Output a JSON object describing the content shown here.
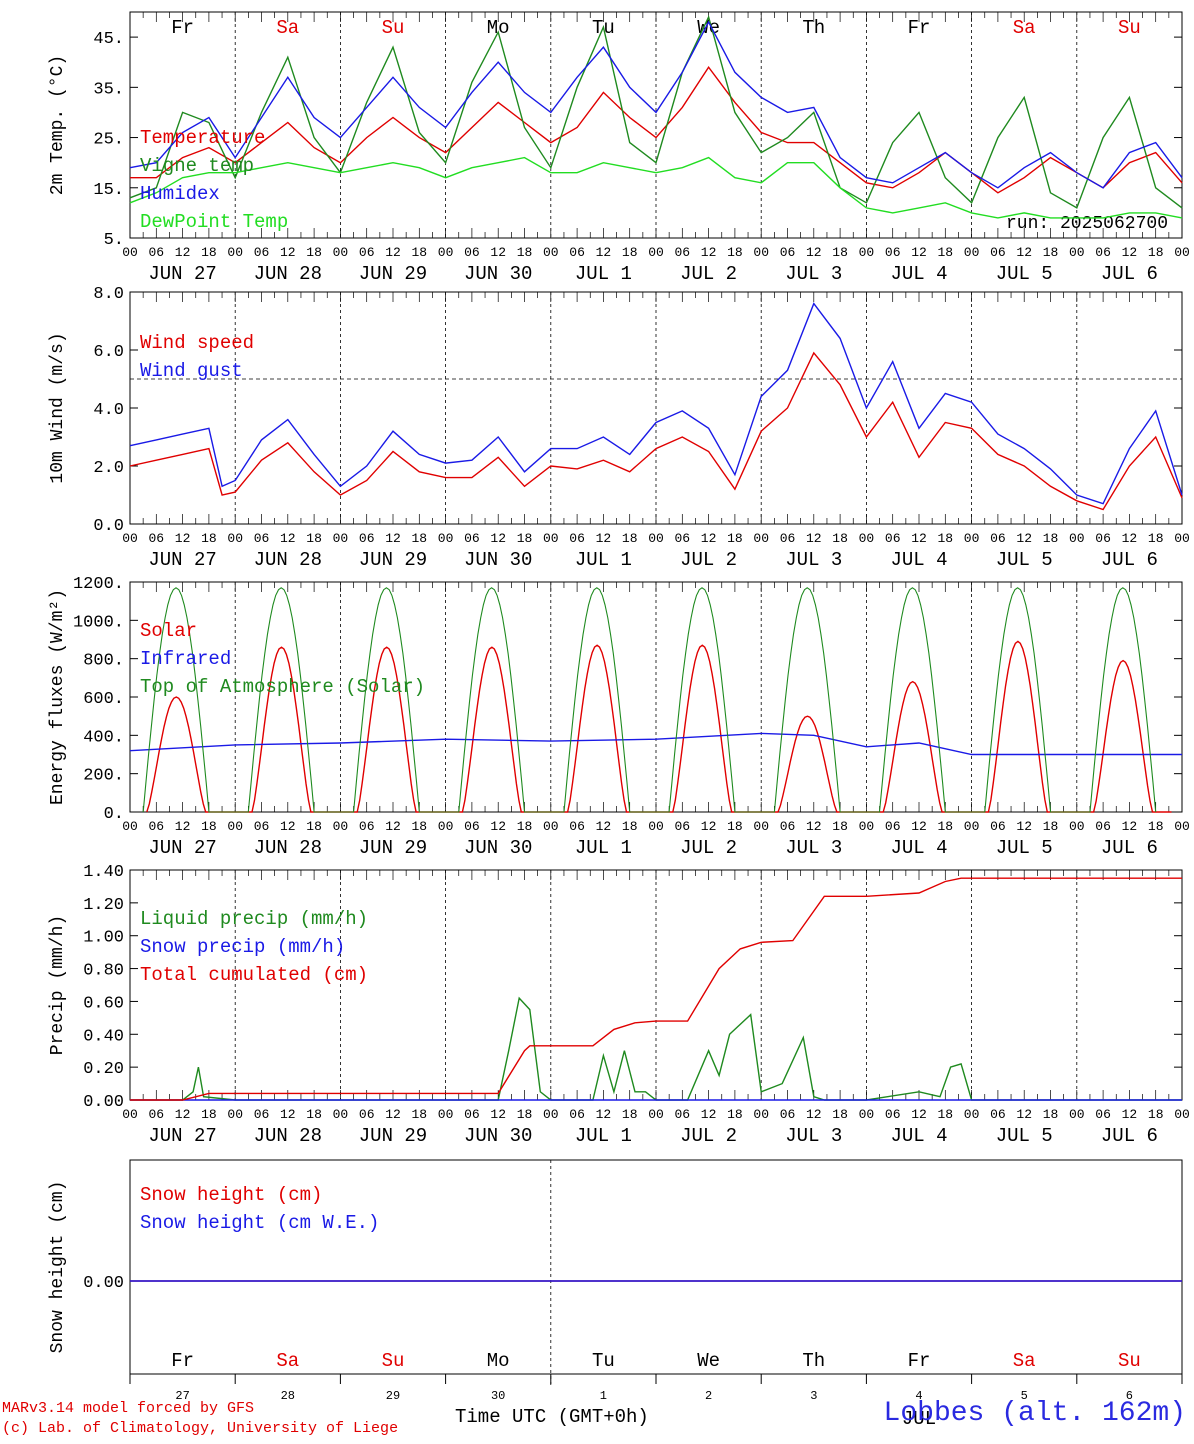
{
  "colors": {
    "red": "#e00000",
    "blue": "#1a1ae6",
    "green": "#1f8a1f",
    "lime": "#22dd22",
    "black": "#000000"
  },
  "run_label": "run: 2025062700",
  "hour_ticks": [
    "00",
    "06",
    "12",
    "18"
  ],
  "date_labels": [
    "JUN 27",
    "JUN 28",
    "JUN 29",
    "JUN 30",
    "JUL  1",
    "JUL  2",
    "JUL  3",
    "JUL  4",
    "JUL  5",
    "JUL  6"
  ],
  "day_names": [
    {
      "label": "Fr",
      "weekend": false
    },
    {
      "label": "Sa",
      "weekend": true
    },
    {
      "label": "Su",
      "weekend": true
    },
    {
      "label": "Mo",
      "weekend": false
    },
    {
      "label": "Tu",
      "weekend": false
    },
    {
      "label": "We",
      "weekend": false
    },
    {
      "label": "Th",
      "weekend": false
    },
    {
      "label": "Fr",
      "weekend": false
    },
    {
      "label": "Sa",
      "weekend": true
    },
    {
      "label": "Su",
      "weekend": true
    }
  ],
  "bottom_day_numbers": [
    "27",
    "28",
    "29",
    "30",
    "1",
    "2",
    "3",
    "4",
    "5",
    "6"
  ],
  "bottom_month": "JUL",
  "x_title": "Time UTC (GMT+0h)",
  "credit_lines": [
    "MARv3.14 model forced by GFS",
    "(c) Lab. of Climatology, University of Liege"
  ],
  "site_label": "Lobbes (alt. 162m)",
  "chart_data": [
    {
      "type": "line",
      "ylabel": "2m Temp. (°C)",
      "ylim": [
        5,
        50
      ],
      "yticks": [
        5,
        15,
        25,
        35,
        45
      ],
      "ytick_labels": [
        "5.",
        "15.",
        "25.",
        "35.",
        "45."
      ],
      "x_unit": "days from 2025-06-27 00 UTC",
      "series": [
        {
          "name": "Temperature",
          "color": "#e00000",
          "x": [
            0,
            0.25,
            0.5,
            0.75,
            1,
            1.25,
            1.5,
            1.75,
            2,
            2.25,
            2.5,
            2.75,
            3,
            3.25,
            3.5,
            3.75,
            4,
            4.25,
            4.5,
            4.75,
            5,
            5.25,
            5.5,
            5.75,
            6,
            6.25,
            6.5,
            6.75,
            7,
            7.25,
            7.5,
            7.75,
            8,
            8.25,
            8.5,
            8.75,
            9,
            9.25,
            9.5,
            9.75,
            10
          ],
          "y": [
            17,
            17,
            21,
            23,
            20,
            24,
            28,
            23,
            20,
            25,
            29,
            25,
            22,
            27,
            32,
            28,
            24,
            27,
            34,
            29,
            25,
            31,
            39,
            32,
            26,
            24,
            24,
            20,
            16,
            15,
            18,
            22,
            18,
            14,
            17,
            21,
            18,
            15,
            20,
            22,
            16
          ]
        },
        {
          "name": "Vigne temp",
          "color": "#1f8a1f",
          "x": [
            0,
            0.25,
            0.5,
            0.75,
            1,
            1.25,
            1.5,
            1.75,
            2,
            2.25,
            2.5,
            2.75,
            3,
            3.25,
            3.5,
            3.75,
            4,
            4.25,
            4.5,
            4.75,
            5,
            5.25,
            5.5,
            5.75,
            6,
            6.25,
            6.5,
            6.75,
            7,
            7.25,
            7.5,
            7.75,
            8,
            8.25,
            8.5,
            8.75,
            9,
            9.25,
            9.5,
            9.75,
            10
          ],
          "y": [
            13,
            15,
            30,
            28,
            17,
            30,
            41,
            25,
            18,
            32,
            43,
            26,
            20,
            36,
            46,
            27,
            19,
            35,
            47,
            24,
            20,
            38,
            49,
            30,
            22,
            25,
            30,
            15,
            12,
            24,
            30,
            17,
            12,
            25,
            33,
            14,
            11,
            25,
            33,
            15,
            11
          ]
        },
        {
          "name": "Humidex",
          "color": "#1a1ae6",
          "x": [
            0,
            0.25,
            0.5,
            0.75,
            1,
            1.25,
            1.5,
            1.75,
            2,
            2.25,
            2.5,
            2.75,
            3,
            3.25,
            3.5,
            3.75,
            4,
            4.25,
            4.5,
            4.75,
            5,
            5.25,
            5.5,
            5.75,
            6,
            6.25,
            6.5,
            6.75,
            7,
            7.25,
            7.5,
            7.75,
            8,
            8.25,
            8.5,
            8.75,
            9,
            9.25,
            9.5,
            9.75,
            10
          ],
          "y": [
            19,
            20,
            26,
            29,
            21,
            29,
            37,
            29,
            25,
            31,
            37,
            31,
            27,
            34,
            40,
            34,
            30,
            37,
            43,
            35,
            30,
            38,
            48,
            38,
            33,
            30,
            31,
            21,
            17,
            16,
            19,
            22,
            18,
            15,
            19,
            22,
            18,
            15,
            22,
            24,
            17
          ]
        },
        {
          "name": "DewPoint Temp",
          "color": "#22dd22",
          "x": [
            0,
            0.25,
            0.5,
            0.75,
            1,
            1.25,
            1.5,
            1.75,
            2,
            2.25,
            2.5,
            2.75,
            3,
            3.25,
            3.5,
            3.75,
            4,
            4.25,
            4.5,
            4.75,
            5,
            5.25,
            5.5,
            5.75,
            6,
            6.25,
            6.5,
            6.75,
            7,
            7.25,
            7.5,
            7.75,
            8,
            8.25,
            8.5,
            8.75,
            9,
            9.25,
            9.5,
            9.75,
            10
          ],
          "y": [
            12,
            14,
            17,
            18,
            18,
            19,
            20,
            19,
            18,
            19,
            20,
            19,
            17,
            19,
            20,
            21,
            18,
            18,
            20,
            19,
            18,
            19,
            21,
            17,
            16,
            20,
            20,
            15,
            11,
            10,
            11,
            12,
            10,
            9,
            10,
            9,
            9,
            9,
            10,
            10,
            9
          ]
        }
      ]
    },
    {
      "type": "line",
      "ylabel": "10m Wind (m/s)",
      "ylim": [
        0,
        8
      ],
      "yticks": [
        0,
        2,
        4,
        6,
        8
      ],
      "ytick_labels": [
        "0.0",
        "2.0",
        "4.0",
        "6.0",
        "8.0"
      ],
      "hline": 5,
      "series": [
        {
          "name": "Wind speed",
          "color": "#e00000",
          "x": [
            0,
            0.25,
            0.5,
            0.75,
            0.875,
            1,
            1.25,
            1.5,
            1.75,
            2,
            2.25,
            2.5,
            2.75,
            3,
            3.25,
            3.5,
            3.75,
            4,
            4.25,
            4.5,
            4.75,
            5,
            5.25,
            5.5,
            5.75,
            6,
            6.25,
            6.5,
            6.75,
            7,
            7.25,
            7.5,
            7.75,
            8,
            8.25,
            8.5,
            8.75,
            9,
            9.25,
            9.5,
            9.75,
            10
          ],
          "y": [
            2.0,
            2.2,
            2.4,
            2.6,
            1.0,
            1.1,
            2.2,
            2.8,
            1.8,
            1.0,
            1.5,
            2.5,
            1.8,
            1.6,
            1.6,
            2.3,
            1.3,
            2.0,
            1.9,
            2.2,
            1.8,
            2.6,
            3.0,
            2.5,
            1.2,
            3.2,
            4.0,
            5.9,
            4.8,
            3.0,
            4.2,
            2.3,
            3.5,
            3.3,
            2.4,
            2.0,
            1.3,
            0.8,
            0.5,
            2.0,
            3.0,
            0.9
          ]
        },
        {
          "name": "Wind gust",
          "color": "#1a1ae6",
          "x": [
            0,
            0.25,
            0.5,
            0.75,
            0.875,
            1,
            1.25,
            1.5,
            1.75,
            2,
            2.25,
            2.5,
            2.75,
            3,
            3.25,
            3.5,
            3.75,
            4,
            4.25,
            4.5,
            4.75,
            5,
            5.25,
            5.5,
            5.75,
            6,
            6.25,
            6.5,
            6.75,
            7,
            7.25,
            7.5,
            7.75,
            8,
            8.25,
            8.5,
            8.75,
            9,
            9.25,
            9.5,
            9.75,
            10
          ],
          "y": [
            2.7,
            2.9,
            3.1,
            3.3,
            1.3,
            1.5,
            2.9,
            3.6,
            2.4,
            1.3,
            2.0,
            3.2,
            2.4,
            2.1,
            2.2,
            3.0,
            1.8,
            2.6,
            2.6,
            3.0,
            2.4,
            3.5,
            3.9,
            3.3,
            1.7,
            4.4,
            5.3,
            7.6,
            6.4,
            4.0,
            5.6,
            3.3,
            4.5,
            4.2,
            3.1,
            2.6,
            1.9,
            1.0,
            0.7,
            2.6,
            3.9,
            1.0
          ]
        }
      ]
    },
    {
      "type": "line",
      "ylabel": "Energy fluxes (W/m²)",
      "ylim": [
        0,
        1200
      ],
      "yticks": [
        0,
        200,
        400,
        600,
        800,
        1000,
        1200
      ],
      "ytick_labels": [
        "0.",
        "200.",
        "400.",
        "600.",
        "800.",
        "1000.",
        "1200."
      ],
      "solar_peaks": [
        600,
        860,
        860,
        860,
        870,
        870,
        500,
        680,
        890,
        790
      ],
      "series": [
        {
          "name": "Solar",
          "color": "#e00000"
        },
        {
          "name": "Infrared",
          "color": "#1a1ae6",
          "x": [
            0,
            1,
            2,
            3,
            4,
            5,
            6,
            6.5,
            7,
            7.5,
            8,
            9,
            10
          ],
          "y": [
            320,
            350,
            360,
            380,
            370,
            380,
            410,
            400,
            340,
            360,
            300,
            300,
            300
          ]
        },
        {
          "name": "Top of Atmosphere (Solar)",
          "color": "#1f8a1f",
          "peak": 1170
        }
      ]
    },
    {
      "type": "line",
      "ylabel": "Precip (mm/h)",
      "ylim": [
        0,
        1.4
      ],
      "yticks": [
        0,
        0.2,
        0.4,
        0.6,
        0.8,
        1.0,
        1.2,
        1.4
      ],
      "ytick_labels": [
        "0.00",
        "0.20",
        "0.40",
        "0.60",
        "0.80",
        "1.00",
        "1.20",
        "1.40"
      ],
      "series": [
        {
          "name": "Liquid precip (mm/h)",
          "color": "#1f8a1f",
          "x": [
            0,
            0.5,
            0.6,
            0.65,
            0.7,
            1,
            3.5,
            3.6,
            3.7,
            3.8,
            3.9,
            4,
            4.4,
            4.5,
            4.6,
            4.7,
            4.8,
            4.9,
            5,
            5.3,
            5.5,
            5.6,
            5.7,
            5.9,
            6,
            6.2,
            6.4,
            6.5,
            6.6,
            6.7,
            7,
            7.5,
            7.7,
            7.8,
            7.9,
            8,
            10
          ],
          "y": [
            0,
            0,
            0.05,
            0.2,
            0.02,
            0,
            0,
            0.3,
            0.62,
            0.55,
            0.05,
            0,
            0,
            0.27,
            0.05,
            0.3,
            0.05,
            0.05,
            0,
            0,
            0.3,
            0.15,
            0.4,
            0.52,
            0.05,
            0.1,
            0.38,
            0.02,
            0,
            0,
            0,
            0.05,
            0.02,
            0.2,
            0.22,
            0,
            0
          ]
        },
        {
          "name": "Snow precip (mm/h)",
          "color": "#1a1ae6",
          "x": [
            0,
            10
          ],
          "y": [
            0,
            0
          ]
        },
        {
          "name": "Total cumulated (cm)",
          "color": "#e00000",
          "x": [
            0,
            0.5,
            0.75,
            1,
            2,
            3,
            3.5,
            3.75,
            3.8,
            4,
            4.4,
            4.6,
            4.8,
            5,
            5.3,
            5.6,
            5.8,
            6,
            6.3,
            6.6,
            6.8,
            7,
            7.5,
            7.75,
            7.9,
            8,
            9,
            10
          ],
          "y": [
            0,
            0,
            0.04,
            0.04,
            0.04,
            0.04,
            0.04,
            0.3,
            0.33,
            0.33,
            0.33,
            0.43,
            0.47,
            0.48,
            0.48,
            0.8,
            0.92,
            0.96,
            0.97,
            1.24,
            1.24,
            1.24,
            1.26,
            1.33,
            1.35,
            1.35,
            1.35,
            1.35
          ]
        }
      ]
    },
    {
      "type": "line",
      "ylabel": "Snow height (cm)",
      "yticks": [
        0
      ],
      "ytick_labels": [
        "0.00"
      ],
      "series": [
        {
          "name": "Snow height (cm)",
          "color": "#e00000",
          "x": [
            0,
            10
          ],
          "y": [
            0,
            0
          ]
        },
        {
          "name": "Snow height (cm W.E.)",
          "color": "#1a1ae6",
          "x": [
            0,
            10
          ],
          "y": [
            0,
            0
          ]
        }
      ]
    }
  ]
}
